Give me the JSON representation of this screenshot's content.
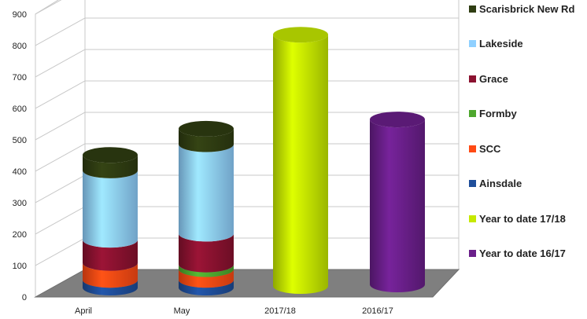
{
  "chart_data": {
    "type": "bar",
    "categories": [
      "April",
      "May",
      "2017/18",
      "2016/17"
    ],
    "ylim": [
      0,
      900
    ],
    "yticks": [
      "0",
      "100",
      "200",
      "300",
      "400",
      "500",
      "600",
      "700",
      "800",
      "900"
    ],
    "grid": true,
    "legend_position": "right",
    "series": [
      {
        "name": "Ainsdale",
        "color": "#1f4e9a",
        "values": [
          25,
          25,
          0,
          0
        ]
      },
      {
        "name": "SCC",
        "color": "#ff4a14",
        "values": [
          55,
          35,
          0,
          0
        ]
      },
      {
        "name": "Formby",
        "color": "#4ea72e",
        "values": [
          0,
          15,
          0,
          0
        ]
      },
      {
        "name": "Grace",
        "color": "#8b1230",
        "values": [
          75,
          100,
          0,
          0
        ]
      },
      {
        "name": "Lakeside",
        "color": "#8fd0ff",
        "values": [
          225,
          290,
          0,
          0
        ]
      },
      {
        "name": "Scarisbrick New Rd",
        "color": "#2f3d12",
        "values": [
          50,
          50,
          0,
          0
        ]
      },
      {
        "name": "Year to date 17/18",
        "color": "#c6e900",
        "values": [
          0,
          0,
          815,
          0
        ]
      },
      {
        "name": "Year to date 16/17",
        "color": "#6a1f8a",
        "values": [
          0,
          0,
          0,
          535
        ]
      }
    ],
    "legend_order": [
      "Scarisbrick New Rd",
      "Lakeside",
      "Grace",
      "Formby",
      "SCC",
      "Ainsdale",
      "Year to date 17/18",
      "Year to date 16/17"
    ]
  }
}
